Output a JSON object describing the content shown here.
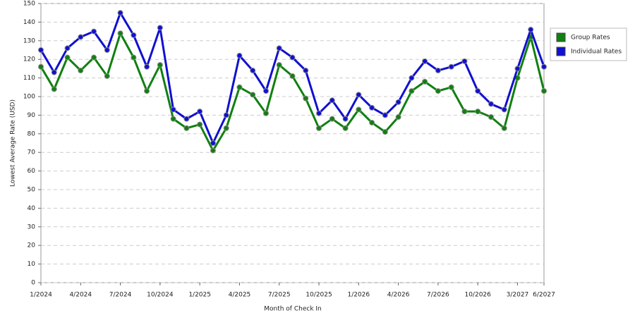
{
  "chart_data": {
    "type": "line",
    "x_label": "Month of Check In",
    "y_label": "Lowest Average Rate (USD)",
    "categories": [
      "1/2024",
      null,
      null,
      "4/2024",
      null,
      null,
      "7/2024",
      null,
      null,
      "10/2024",
      null,
      null,
      "1/2025",
      null,
      null,
      "4/2025",
      null,
      null,
      "7/2025",
      null,
      null,
      "10/2025",
      null,
      null,
      "1/2026",
      null,
      null,
      "4/2026",
      null,
      null,
      "7/2026",
      null,
      null,
      "10/2026",
      null,
      null,
      "3/2027",
      null,
      "6/2027"
    ],
    "series": [
      {
        "name": "Group Rates",
        "color": "#108010",
        "values": [
          116,
          104,
          121,
          114,
          121,
          111,
          134,
          121,
          103,
          117,
          88,
          83,
          85,
          71,
          83,
          105,
          101,
          91,
          117,
          111,
          99,
          83,
          88,
          83,
          93,
          86,
          81,
          89,
          103,
          108,
          103,
          105,
          92,
          92,
          89,
          83,
          110,
          132,
          103
        ]
      },
      {
        "name": "Individual Rates",
        "color": "#1010d0",
        "values": [
          125,
          113,
          126,
          132,
          135,
          125,
          145,
          133,
          116,
          137,
          93,
          88,
          92,
          75,
          90,
          122,
          114,
          103,
          126,
          121,
          114,
          91,
          98,
          88,
          101,
          94,
          90,
          97,
          110,
          119,
          114,
          116,
          119,
          103,
          96,
          93,
          115,
          136,
          116
        ]
      }
    ],
    "ylim": [
      0,
      150
    ],
    "yticks": [
      0,
      10,
      20,
      30,
      40,
      50,
      60,
      70,
      80,
      90,
      100,
      110,
      120,
      130,
      140,
      150
    ],
    "grid": true,
    "legend": "right"
  }
}
